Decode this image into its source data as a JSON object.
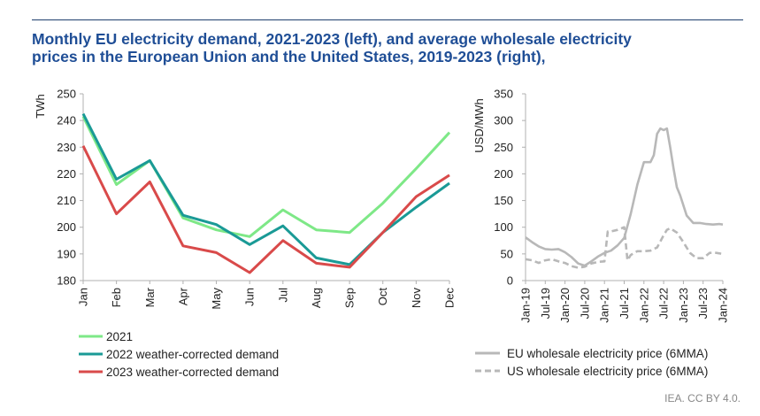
{
  "title_lines": [
    "Monthly EU electricity demand, 2021-2023 (left), and average wholesale electricity",
    "prices in the European Union and the United States, 2019-2023 (right),"
  ],
  "credit": "IEA. CC BY 4.0.",
  "colors": {
    "s2021": "#7ee887",
    "s2022": "#1a9a96",
    "s2023": "#d94a4a",
    "eu": "#b8b8b8",
    "us": "#b8b8b8",
    "axis": "#b0b0b0"
  },
  "chart_data": [
    {
      "type": "line",
      "ylabel": "TWh",
      "xlabel": "",
      "ylim": [
        180,
        250
      ],
      "yticks": [
        180,
        190,
        200,
        210,
        220,
        230,
        240,
        250
      ],
      "categories": [
        "Jan",
        "Feb",
        "Mar",
        "Apr",
        "May",
        "Jun",
        "Jul",
        "Aug",
        "Sep",
        "Oct",
        "Nov",
        "Dec"
      ],
      "grid": false,
      "legend_position": "bottom-left",
      "series": [
        {
          "name": "2021",
          "color_key": "s2021",
          "values": [
            241.5,
            216,
            225,
            203.5,
            199,
            196.5,
            206.5,
            199,
            198,
            209,
            222,
            235.5
          ]
        },
        {
          "name": "2022 weather-corrected demand",
          "color_key": "s2022",
          "values": [
            242.5,
            218,
            225,
            204.5,
            201,
            193.5,
            200.5,
            188.5,
            186,
            198,
            207.5,
            216.5
          ]
        },
        {
          "name": "2023 weather-corrected demand",
          "color_key": "s2023",
          "values": [
            230.5,
            205,
            217,
            193,
            190.5,
            183,
            195,
            186.5,
            185,
            198,
            211.5,
            219.5
          ]
        }
      ]
    },
    {
      "type": "line",
      "ylabel": "USD/MWh",
      "xlabel": "",
      "ylim": [
        0,
        350
      ],
      "yticks": [
        0,
        50,
        100,
        150,
        200,
        250,
        300,
        350
      ],
      "xtick_labels": [
        "Jan-19",
        "Jul-19",
        "Jan-20",
        "Jul-20",
        "Jan-21",
        "Jul-21",
        "Jan-22",
        "Jul-22",
        "Jan-23",
        "Jul-23",
        "Jan-24"
      ],
      "grid": false,
      "legend_position": "bottom",
      "series": [
        {
          "name": "EU wholesale electricity price (6MMA)",
          "color_key": "eu",
          "dash": "solid",
          "x": [
            "2019-01",
            "2019-03",
            "2019-05",
            "2019-07",
            "2019-09",
            "2019-11",
            "2020-01",
            "2020-03",
            "2020-05",
            "2020-07",
            "2020-09",
            "2020-11",
            "2021-01",
            "2021-03",
            "2021-05",
            "2021-07",
            "2021-09",
            "2021-11",
            "2022-01",
            "2022-03",
            "2022-04",
            "2022-05",
            "2022-06",
            "2022-07",
            "2022-08",
            "2022-09",
            "2022-10",
            "2022-11",
            "2022-12",
            "2023-02",
            "2023-04",
            "2023-06",
            "2023-08",
            "2023-10",
            "2023-12",
            "2024-01"
          ],
          "values": [
            81,
            72,
            64,
            59,
            58,
            59,
            53,
            44,
            32,
            28,
            36,
            45,
            52,
            56,
            66,
            80,
            125,
            180,
            222,
            222,
            235,
            275,
            285,
            282,
            285,
            250,
            210,
            175,
            160,
            122,
            108,
            108,
            106,
            105,
            106,
            105
          ]
        },
        {
          "name": "US wholesale electricity price (6MMA)",
          "color_key": "us",
          "dash": "dashed",
          "x": [
            "2019-01",
            "2019-03",
            "2019-05",
            "2019-07",
            "2019-09",
            "2019-11",
            "2020-01",
            "2020-03",
            "2020-05",
            "2020-07",
            "2020-09",
            "2020-11",
            "2021-01",
            "2021-02",
            "2021-03",
            "2021-05",
            "2021-07",
            "2021-08",
            "2021-09",
            "2021-11",
            "2022-01",
            "2022-03",
            "2022-05",
            "2022-07",
            "2022-08",
            "2022-09",
            "2022-11",
            "2023-01",
            "2023-03",
            "2023-05",
            "2023-07",
            "2023-09",
            "2023-11",
            "2024-01"
          ],
          "values": [
            40,
            38,
            33,
            38,
            40,
            36,
            33,
            27,
            24,
            26,
            32,
            35,
            36,
            92,
            92,
            95,
            100,
            38,
            48,
            55,
            55,
            56,
            62,
            85,
            95,
            98,
            90,
            72,
            52,
            42,
            42,
            52,
            52,
            50
          ]
        }
      ]
    }
  ]
}
